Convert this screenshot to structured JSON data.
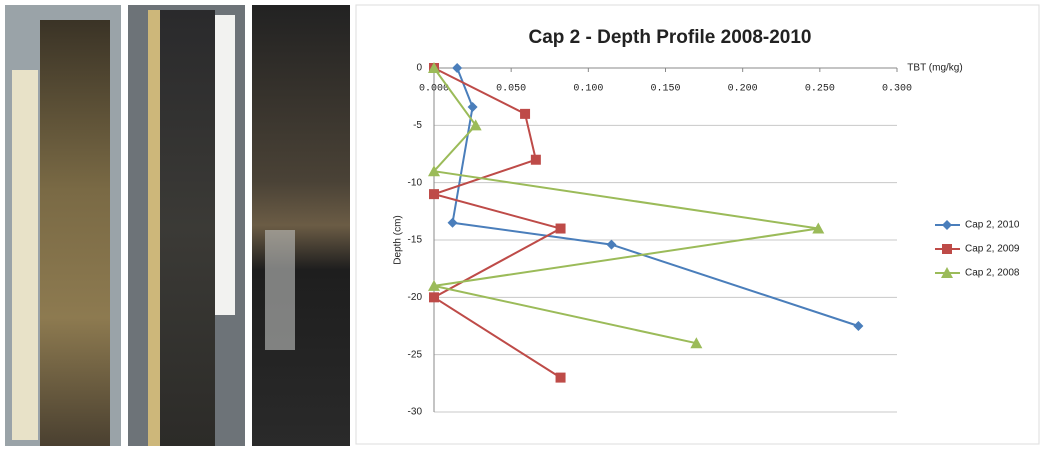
{
  "chart_data": {
    "type": "line",
    "title": "Cap 2 - Depth Profile 2008-2010",
    "x_label": "TBT (mg/kg)",
    "y_label": "Depth (cm)",
    "xlim": [
      0,
      0.3
    ],
    "xticks": [
      {
        "value": 0,
        "label": "0.000"
      },
      {
        "value": 0.05,
        "label": "0.050"
      },
      {
        "value": 0.1,
        "label": "0.100"
      },
      {
        "value": 0.15,
        "label": "0.150"
      },
      {
        "value": 0.2,
        "label": "0.200"
      },
      {
        "value": 0.25,
        "label": "0.250"
      },
      {
        "value": 0.3,
        "label": "0.300"
      }
    ],
    "ylim": [
      -30,
      0
    ],
    "yticks": [
      0,
      -5,
      -10,
      -15,
      -20,
      -25,
      -30
    ],
    "grid": true,
    "series": [
      {
        "name": "Cap 2, 2010",
        "color": "#4a7ebb",
        "marker": "diamond",
        "x": [
          0.015,
          0.025,
          0.012,
          0.115,
          0.275
        ],
        "values": [
          0,
          -3.4,
          -13.5,
          -15.4,
          -22.5
        ]
      },
      {
        "name": "Cap 2, 2009",
        "color": "#be4b48",
        "marker": "square",
        "x": [
          0,
          0.059,
          0.066,
          0,
          0.082,
          0,
          0.082
        ],
        "values": [
          0,
          -4,
          -8,
          -11,
          -14,
          -20,
          -27
        ]
      },
      {
        "name": "Cap 2, 2008",
        "color": "#9bbb59",
        "marker": "triangle",
        "x": [
          0,
          0.027,
          0,
          0.249,
          0,
          0.17
        ],
        "values": [
          0,
          -5,
          -9,
          -14,
          -19,
          -24
        ]
      }
    ]
  }
}
